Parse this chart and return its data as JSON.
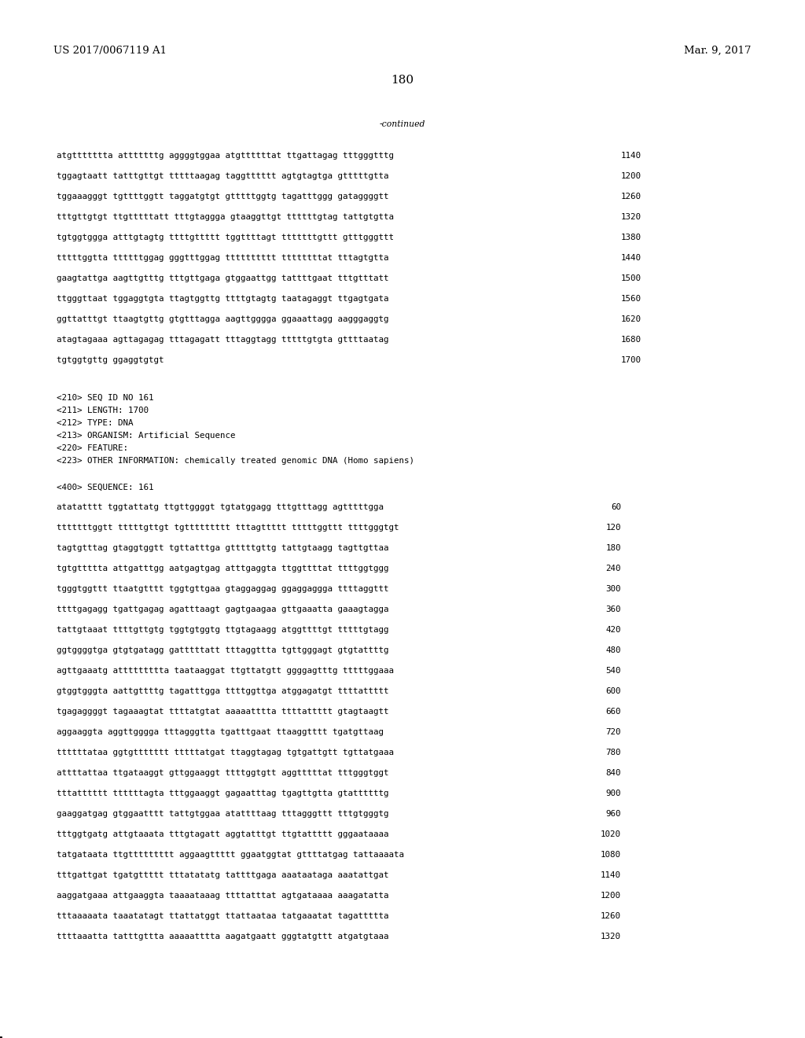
{
  "background_color": "#ffffff",
  "header_left": "US 2017/0067119 A1",
  "header_right": "Mar. 9, 2017",
  "page_number": "180",
  "continued_text": "-continued",
  "font_size_header": 9.5,
  "font_size_body": 7.8,
  "font_size_page": 11,
  "sequence_lines_top": [
    [
      "atgttttttta atttttttg aggggtggaa atgttttttat ttgattagag tttgggtttg",
      "1140"
    ],
    [
      "tggagtaatt tatttgttgt tttttaagag taggtttttt agtgtagtga gtttttgtta",
      "1200"
    ],
    [
      "tggaaagggt tgttttggtt taggatgtgt gtttttggtg tagatttggg gataggggtt",
      "1260"
    ],
    [
      "tttgttgtgt ttgtttttatt tttgtaggga gtaaggttgt ttttttgtag tattgtgtta",
      "1320"
    ],
    [
      "tgtggtggga atttgtagtg ttttgttttt tggttttagt tttttttgttt gtttgggttt",
      "1380"
    ],
    [
      "tttttggtta ttttttggag gggtttggag tttttttttt ttttttttat tttagtgtta",
      "1440"
    ],
    [
      "gaagtattga aagttgtttg tttgttgaga gtggaattgg tattttgaat tttgtttatt",
      "1500"
    ],
    [
      "ttgggttaat tggaggtgta ttagtggttg ttttgtagtg taatagaggt ttgagtgata",
      "1560"
    ],
    [
      "ggttatttgt ttaagtgttg gtgtttagga aagttgggga ggaaattagg aagggaggtg",
      "1620"
    ],
    [
      "atagtagaaa agttagagag tttagagatt tttaggtagg tttttgtgta gttttaatag",
      "1680"
    ],
    [
      "tgtggtgttg ggaggtgtgt",
      "1700"
    ]
  ],
  "metadata_lines": [
    "<210> SEQ ID NO 161",
    "<211> LENGTH: 1700",
    "<212> TYPE: DNA",
    "<213> ORGANISM: Artificial Sequence",
    "<220> FEATURE:",
    "<223> OTHER INFORMATION: chemically treated genomic DNA (Homo sapiens)"
  ],
  "seq400_line": "<400> SEQUENCE: 161",
  "sequence_lines_bottom": [
    [
      "atatatttt tggtattatg ttgttggggt tgtatggagg tttgtttagg agtttttgga",
      "60"
    ],
    [
      "tttttttggtt tttttgttgt tgttttttttt tttagttttt tttttggttt ttttgggtgt",
      "120"
    ],
    [
      "tagtgtttag gtaggtggtt tgttatttga gtttttgttg tattgtaagg tagttgttaa",
      "180"
    ],
    [
      "tgtgttttta attgatttgg aatgagtgag atttgaggta ttggttttat ttttggtggg",
      "240"
    ],
    [
      "tgggtggttt ttaatgtttt tggtgttgaa gtaggaggag ggaggaggga ttttaggttt",
      "300"
    ],
    [
      "ttttgagagg tgattgagag agatttaagt gagtgaagaa gttgaaatta gaaagtagga",
      "360"
    ],
    [
      "tattgtaaat ttttgttgtg tggtgtggtg ttgtagaagg atggttttgt tttttgtagg",
      "420"
    ],
    [
      "ggtggggtga gtgtgatagg gatttttatt tttaggttta tgttgggagt gtgtattttg",
      "480"
    ],
    [
      "agttgaaatg attttttttta taataaggat ttgttatgtt ggggagtttg tttttggaaa",
      "540"
    ],
    [
      "gtggtgggta aattgttttg tagatttgga ttttggttga atggagatgt ttttattttt",
      "600"
    ],
    [
      "tgagaggggt tagaaagtat ttttatgtat aaaaatttta ttttattttt gtagtaagtt",
      "660"
    ],
    [
      "aggaaggta aggttgggga tttagggtta tgatttgaat ttaaggtttt tgatgttaag",
      "720"
    ],
    [
      "ttttttataa ggtgttttttt tttttatgat ttaggtagag tgtgattgtt tgttatgaaa",
      "780"
    ],
    [
      "attttattaa ttgataaggt gttggaaggt ttttggtgtt aggtttttat tttgggtggt",
      "840"
    ],
    [
      "tttatttttt ttttttagta tttggaaggt gagaatttag tgagttgtta gtattttttg",
      "900"
    ],
    [
      "gaaggatgag gtggaatttt tattgtggaa atattttaag tttagggttt tttgtgggtg",
      "960"
    ],
    [
      "tttggtgatg attgtaaata tttgtagatt aggtatttgt ttgtattttt gggaataaaa",
      "1020"
    ],
    [
      "tatgataata ttgttttttttt aggaagttttt ggaatggtat gttttatgag tattaaaata",
      "1080"
    ],
    [
      "tttgattgat tgatgttttt tttatatatg tattttgaga aaataataga aaatattgat",
      "1140"
    ],
    [
      "aaggatgaaa attgaaggta taaaataaag ttttatttat agtgataaaa aaagatatta",
      "1200"
    ],
    [
      "tttaaaaata taaatatagt ttattatggt ttattaataa tatgaaatat tagattttta",
      "1260"
    ],
    [
      "ttttaaatta tatttgttta aaaaatttta aagatgaatt gggtatgttt atgatgtaaa",
      "1320"
    ]
  ]
}
